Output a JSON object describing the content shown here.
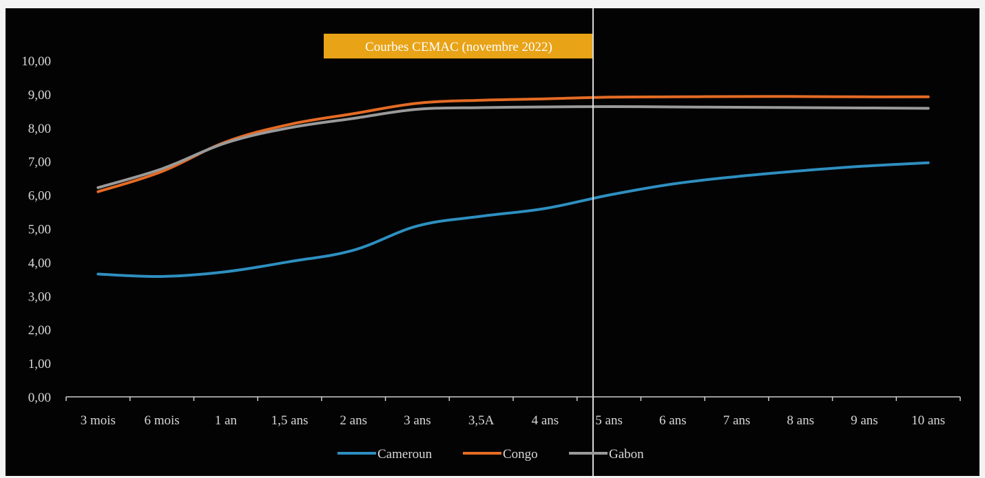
{
  "chart_data": {
    "type": "line",
    "title": "Courbes CEMAC (novembre 2022)",
    "categories": [
      "3 mois",
      "6 mois",
      "1 an",
      "1,5 ans",
      "2 ans",
      "3 ans",
      "3,5A",
      "4 ans",
      "5 ans",
      "6 ans",
      "7 ans",
      "8 ans",
      "9 ans",
      "10 ans"
    ],
    "series": [
      {
        "name": "Cameroun",
        "color": "#2e8fc0",
        "values": [
          3.65,
          3.58,
          3.72,
          4.02,
          4.36,
          5.08,
          5.37,
          5.6,
          6.0,
          6.33,
          6.55,
          6.72,
          6.86,
          6.96
        ]
      },
      {
        "name": "Congo",
        "color": "#e46b25",
        "values": [
          6.1,
          6.7,
          7.58,
          8.1,
          8.42,
          8.73,
          8.82,
          8.86,
          8.91,
          8.92,
          8.93,
          8.93,
          8.92,
          8.92
        ]
      },
      {
        "name": "Gabon",
        "color": "#9a9a9a",
        "values": [
          6.22,
          6.78,
          7.55,
          8.0,
          8.28,
          8.55,
          8.6,
          8.62,
          8.63,
          8.62,
          8.61,
          8.6,
          8.59,
          8.58
        ]
      }
    ],
    "y_ticks": [
      "0,00",
      "1,00",
      "2,00",
      "3,00",
      "4,00",
      "5,00",
      "6,00",
      "7,00",
      "8,00",
      "9,00",
      "10,00"
    ],
    "ylim": [
      0,
      10
    ],
    "grid": false,
    "legend_position": "bottom-center",
    "title_background": "#e8a317"
  }
}
